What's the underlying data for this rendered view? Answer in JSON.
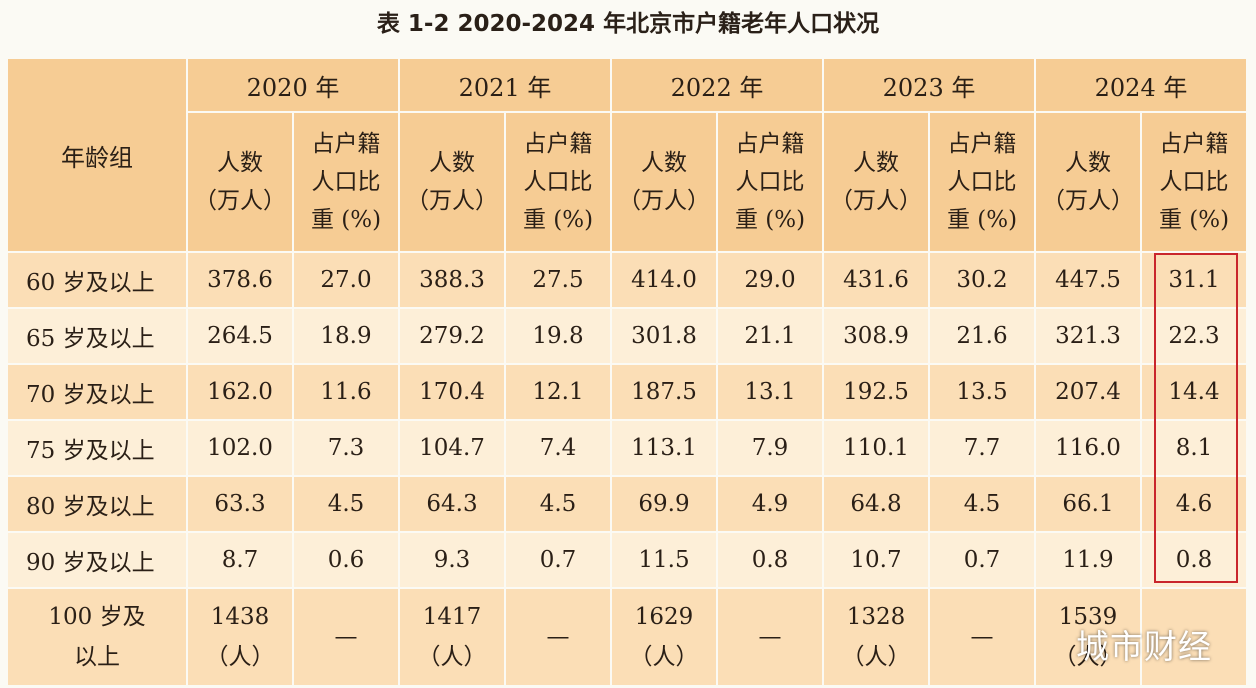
{
  "title": "表 1-2  2020-2024 年北京市户籍老年人口状况",
  "header": {
    "age_group": "年龄组",
    "years": [
      "2020 年",
      "2021 年",
      "2022 年",
      "2023 年",
      "2024 年"
    ],
    "count_label": [
      "人数",
      "（万人）"
    ],
    "share_label": [
      "占户籍",
      "人口比",
      "重 (%)"
    ]
  },
  "rows": [
    {
      "label": "60 岁及以上",
      "cells": [
        "378.6",
        "27.0",
        "388.3",
        "27.5",
        "414.0",
        "29.0",
        "431.6",
        "30.2",
        "447.5",
        "31.1"
      ]
    },
    {
      "label": "65 岁及以上",
      "cells": [
        "264.5",
        "18.9",
        "279.2",
        "19.8",
        "301.8",
        "21.1",
        "308.9",
        "21.6",
        "321.3",
        "22.3"
      ]
    },
    {
      "label": "70 岁及以上",
      "cells": [
        "162.0",
        "11.6",
        "170.4",
        "12.1",
        "187.5",
        "13.1",
        "192.5",
        "13.5",
        "207.4",
        "14.4"
      ]
    },
    {
      "label": "75 岁及以上",
      "cells": [
        "102.0",
        "7.3",
        "104.7",
        "7.4",
        "113.1",
        "7.9",
        "110.1",
        "7.7",
        "116.0",
        "8.1"
      ]
    },
    {
      "label": "80 岁及以上",
      "cells": [
        "63.3",
        "4.5",
        "64.3",
        "4.5",
        "69.9",
        "4.9",
        "64.8",
        "4.5",
        "66.1",
        "4.6"
      ]
    },
    {
      "label": "90 岁及以上",
      "cells": [
        "8.7",
        "0.6",
        "9.3",
        "0.7",
        "11.5",
        "0.8",
        "10.7",
        "0.7",
        "11.9",
        "0.8"
      ]
    }
  ],
  "last_row": {
    "label": [
      "100 岁及",
      "以上"
    ],
    "unit": "（人）",
    "counts": [
      "1438",
      "1417",
      "1629",
      "1328",
      "1539"
    ],
    "dash": "—"
  },
  "watermark": "城市财经",
  "colors": {
    "header_bg": "#f6cc94",
    "row_dark": "#fbdeb6",
    "row_light": "#fdefd8",
    "highlight_border": "#c9262c"
  }
}
